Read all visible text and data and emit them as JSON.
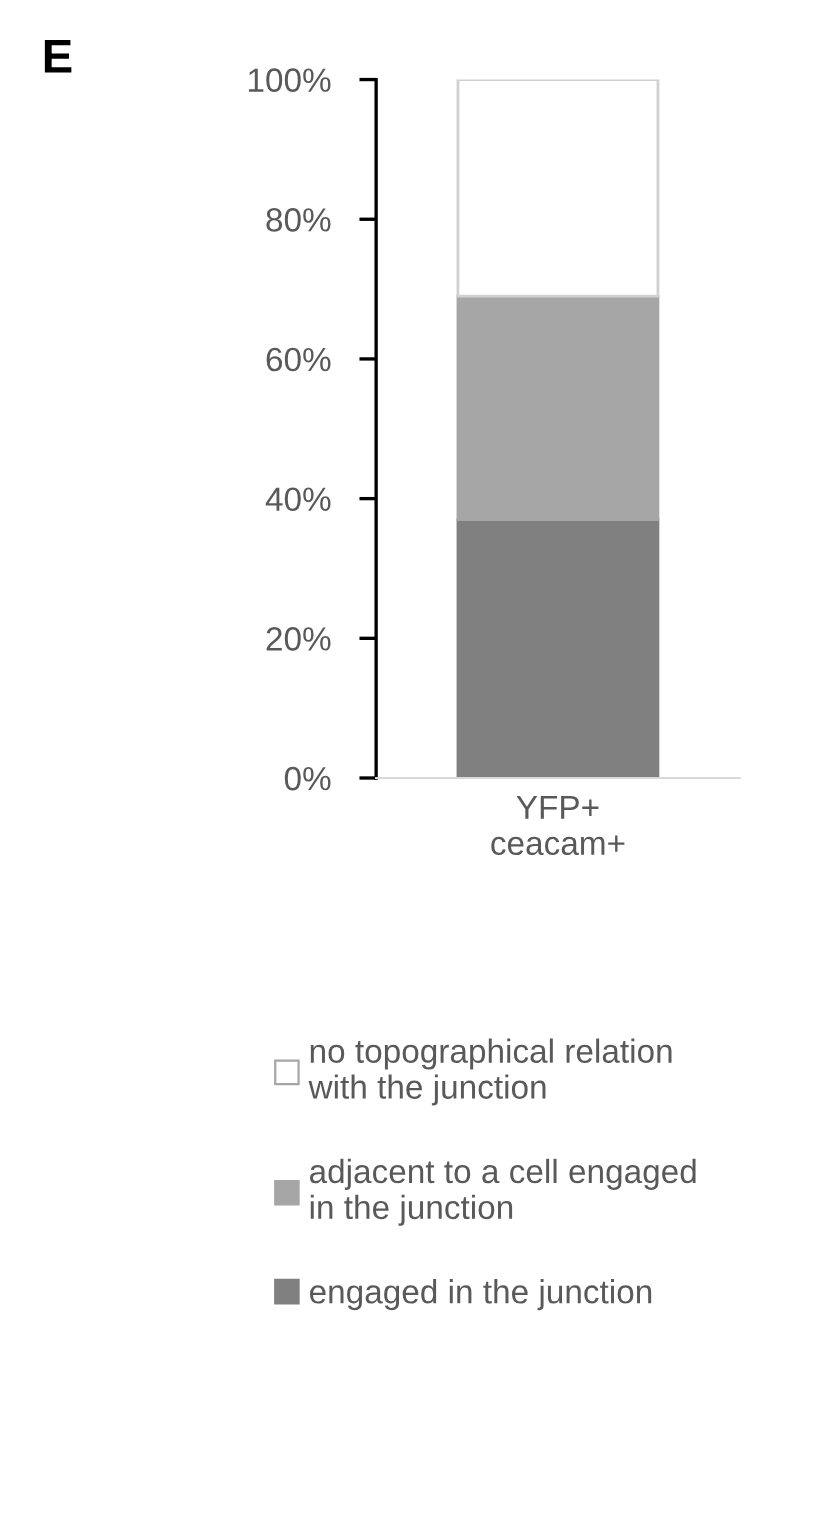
{
  "chart_data": {
    "type": "bar",
    "stacked": true,
    "categories": [
      "YFP+\nceacam+"
    ],
    "series": [
      {
        "name": "engaged in the junction",
        "color": "#808080",
        "values": [
          37
        ]
      },
      {
        "name": "adjacent to a cell engaged\nin the junction",
        "color": "#a6a6a6",
        "values": [
          32
        ]
      },
      {
        "name": "no topographical relation\nwith the junction",
        "color": "#ffffff",
        "values": [
          31
        ]
      }
    ],
    "ylim": [
      0,
      100
    ],
    "yticks": [
      {
        "value": 0,
        "label": "0%"
      },
      {
        "value": 20,
        "label": "20%"
      },
      {
        "value": 40,
        "label": "40%"
      },
      {
        "value": 60,
        "label": "60%"
      },
      {
        "value": 80,
        "label": "80%"
      },
      {
        "value": 100,
        "label": "100%"
      }
    ],
    "grid": false,
    "legend": "bottom",
    "annotations": [
      "E"
    ]
  }
}
